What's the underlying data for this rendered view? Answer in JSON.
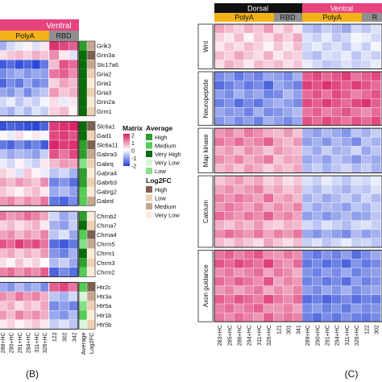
{
  "panel_b": {
    "panel_label": "(B)",
    "header_ventral": "Ventral",
    "header_polya": "PolyA",
    "header_rbd": "RBD",
    "sample_labels": [
      "288+HC",
      "290+HC",
      "291+HC",
      "294+HC",
      "311+HC",
      "326+HC",
      "122",
      "302",
      "342"
    ],
    "extra_column_labels": [
      "Average",
      "Log2FC"
    ],
    "gene_groups": [
      {
        "genes": [
          "Grik3",
          "Grin3a",
          "Slc17a6",
          "Gria2",
          "Gria1",
          "Gria3",
          "Grin2a",
          "Grm1"
        ]
      },
      {
        "genes": [
          "Slc6a1",
          "Gad1",
          "Slc6a11",
          "Gabra3",
          "Gabrq",
          "Gabra4",
          "Gabrb3",
          "Gabrg2",
          "Gabrd"
        ]
      },
      {
        "genes": [
          "Chrnb2",
          "Chrna7",
          "Chrna4",
          "Chrm5",
          "Chrm1",
          "Chrm3",
          "Chrm2"
        ]
      },
      {
        "genes": [
          "Htr2c",
          "Htr3a",
          "Htr5a",
          "Htr1b",
          "Htr5b"
        ]
      }
    ]
  },
  "panel_c": {
    "panel_label": "(C)",
    "header_dorsal": "Dorsal",
    "header_ventral": "Ventral",
    "header_polya_1": "PolyA",
    "header_rbd_1": "RBD",
    "header_polya_2": "PolyA",
    "header_rbd_2": "R",
    "sample_labels": [
      "283+HC",
      "285+HC",
      "286+HC",
      "294+HC",
      "311+HC",
      "326+HC",
      "121",
      "301",
      "341",
      "289+HC",
      "290+HC",
      "291+HC",
      "294+HC",
      "311+HC",
      "326+HC",
      "122",
      "302"
    ],
    "row_groups": [
      {
        "name": "Wnt",
        "rows": 5
      },
      {
        "name": "Neuropeptide",
        "rows": 6
      },
      {
        "name": "Map kinase",
        "rows": 5
      },
      {
        "name": "Calcium",
        "rows": 8
      },
      {
        "name": "Axon guidance",
        "rows": 8
      }
    ]
  },
  "legend": {
    "matrix_title": "Matrix",
    "matrix_ticks": [
      "2",
      "1",
      "0",
      "-1",
      "-2"
    ],
    "average_title": "Average",
    "average_items": [
      "High",
      "Medium",
      "Very High",
      "Very Low",
      "Low"
    ],
    "log2fc_title": "Log2FC",
    "log2fc_items": [
      "High",
      "Low",
      "Medium",
      "Very Low"
    ]
  },
  "colors": {
    "ventral": "#e8437f",
    "dorsal": "#111111",
    "polya": "#f2b21a",
    "rbd": "#8f8f8f",
    "high": "#d81b60",
    "mid": "#ffffff",
    "low": "#1f3ed6",
    "avg_high": "#2e9e2e",
    "avg_medium": "#55cc55",
    "avg_very_high": "#0a6b0a",
    "avg_very_low": "#d9f5d9",
    "avg_low": "#88e088",
    "fc_high": "#7d6253",
    "fc_low": "#efd0b2",
    "fc_medium": "#c6a68e",
    "fc_very_low": "#fbecd9"
  },
  "chart_data": [
    {
      "type": "heatmap",
      "title": "",
      "columns": [
        "288+HC",
        "290+HC",
        "291+HC",
        "294+HC",
        "311+HC",
        "326+HC",
        "122",
        "302",
        "342"
      ],
      "rows": [
        "Grik3",
        "Grin3a",
        "Slc17a6",
        "Gria2",
        "Gria1",
        "Gria3",
        "Grin2a",
        "Grm1",
        "Slc6a1",
        "Gad1",
        "Slc6a11",
        "Gabra3",
        "Gabrq",
        "Gabra4",
        "Gabrb3",
        "Gabrg2",
        "Gabrd",
        "Chrnb2",
        "Chrna7",
        "Chrna4",
        "Chrm5",
        "Chrm1",
        "Chrm3",
        "Chrm2",
        "Htr2c",
        "Htr3a",
        "Htr5a",
        "Htr1b",
        "Htr5b"
      ],
      "color_range": [
        -2,
        2
      ],
      "values": [
        [
          -0.8,
          -0.4,
          -0.2,
          0.1,
          -0.3,
          0.2,
          1.8,
          1.6,
          1.4
        ],
        [
          0.3,
          0.5,
          0.6,
          0.4,
          0.7,
          0.5,
          1.0,
          0.2,
          -0.3
        ],
        [
          -1.7,
          -1.5,
          -1.8,
          -1.6,
          -1.9,
          -1.4,
          0.6,
          1.5,
          1.3
        ],
        [
          -1.2,
          -1.0,
          -0.8,
          -1.1,
          -0.9,
          -1.0,
          1.2,
          1.4,
          1.0
        ],
        [
          -1.6,
          -1.2,
          -1.4,
          -0.9,
          -1.3,
          -1.1,
          0.4,
          0.8,
          0.6
        ],
        [
          -0.9,
          -1.1,
          -0.7,
          -1.2,
          -0.8,
          -0.6,
          0.9,
          0.5,
          0.7
        ],
        [
          -0.4,
          -0.2,
          -0.6,
          -0.3,
          -0.5,
          -0.1,
          0.3,
          -0.2,
          0.2
        ],
        [
          -0.6,
          -0.8,
          -0.4,
          -0.7,
          -0.3,
          -0.5,
          0.4,
          0.6,
          0.1
        ],
        [
          -1.8,
          -1.6,
          -1.7,
          -1.8,
          -1.9,
          -1.6,
          1.7,
          1.8,
          1.9
        ],
        [
          0.1,
          -0.2,
          0.3,
          0.0,
          0.2,
          -0.1,
          1.6,
          1.7,
          1.5
        ],
        [
          -1.4,
          -1.6,
          -1.2,
          -1.5,
          -1.3,
          -1.7,
          1.9,
          1.7,
          1.8
        ],
        [
          -0.6,
          -0.9,
          -0.7,
          -0.8,
          -1.0,
          -0.5,
          1.5,
          1.2,
          1.6
        ],
        [
          -0.2,
          -0.4,
          0.1,
          -0.3,
          -0.5,
          0.2,
          0.6,
          0.9,
          0.8
        ],
        [
          0.4,
          0.2,
          -0.3,
          0.5,
          0.1,
          -0.2,
          -0.6,
          -0.4,
          -0.8
        ],
        [
          0.8,
          0.6,
          0.9,
          0.7,
          0.5,
          1.0,
          -1.3,
          -1.1,
          -1.5
        ],
        [
          0.5,
          0.3,
          0.1,
          0.4,
          0.6,
          0.2,
          -0.9,
          -0.7,
          -1.0
        ],
        [
          0.9,
          1.1,
          0.7,
          1.0,
          0.8,
          1.2,
          -1.4,
          -1.6,
          -1.2
        ],
        [
          1.2,
          0.9,
          1.0,
          1.3,
          1.1,
          0.8,
          -0.4,
          -0.9,
          -0.6
        ],
        [
          0.4,
          0.6,
          0.3,
          0.5,
          0.7,
          0.2,
          -0.8,
          -1.0,
          -0.5
        ],
        [
          0.8,
          1.0,
          0.6,
          0.9,
          0.7,
          1.1,
          -0.6,
          -0.3,
          -0.9
        ],
        [
          1.5,
          1.3,
          1.7,
          1.4,
          1.6,
          1.2,
          -1.5,
          -1.7,
          -1.4
        ],
        [
          0.6,
          0.8,
          0.4,
          0.7,
          0.5,
          0.9,
          -1.1,
          -1.3,
          -0.8
        ],
        [
          0.3,
          0.1,
          0.5,
          0.2,
          0.4,
          0.0,
          -0.7,
          -0.5,
          -0.9
        ],
        [
          1.1,
          1.3,
          0.9,
          1.2,
          1.0,
          1.4,
          -1.6,
          -1.2,
          -1.5
        ],
        [
          -0.9,
          -1.1,
          -0.7,
          -1.0,
          -0.8,
          -1.2,
          1.4,
          1.6,
          1.2
        ],
        [
          1.0,
          0.8,
          1.2,
          0.9,
          1.1,
          0.7,
          -0.6,
          -0.8,
          -0.4
        ],
        [
          0.5,
          0.7,
          0.3,
          0.6,
          0.4,
          0.8,
          -1.2,
          -1.0,
          -1.3
        ],
        [
          0.9,
          0.6,
          1.1,
          0.8,
          1.0,
          0.7,
          -0.9,
          -1.1,
          -0.7
        ],
        [
          0.2,
          0.4,
          0.1,
          0.3,
          0.5,
          0.2,
          -0.5,
          -0.3,
          -0.6
        ]
      ],
      "average": [
        "High",
        "Very High",
        "Very High",
        "Very High",
        "Very High",
        "Very High",
        "Very High",
        "Very High",
        "Very High",
        "Very High",
        "High",
        "High",
        "Low",
        "High",
        "High",
        "Medium",
        "Medium",
        "High",
        "Very High",
        "Medium",
        "Low",
        "Very High",
        "High",
        "Medium",
        "Medium",
        "Very Low",
        "Low",
        "Medium",
        "Very Low"
      ],
      "log2fc": [
        "Medium",
        "High",
        "Medium",
        "Low",
        "Very Low",
        "Low",
        "Very Low",
        "Low",
        "High",
        "Low",
        "High",
        "Medium",
        "Low",
        "Very Low",
        "Low",
        "Very Low",
        "Medium",
        "Very Low",
        "Low",
        "High",
        "Medium",
        "Very Low",
        "Low",
        "Very Low",
        "High",
        "Medium",
        "Low",
        "Very Low",
        "Low"
      ]
    },
    {
      "type": "heatmap",
      "title": "",
      "columns": [
        "283+HC",
        "285+HC",
        "286+HC",
        "294+HC",
        "311+HC",
        "326+HC",
        "121",
        "301",
        "341",
        "289+HC",
        "290+HC",
        "291+HC",
        "294+HC",
        "311+HC",
        "326+HC",
        "122",
        "302"
      ],
      "row_groups": [
        "Wnt",
        "Neuropeptide",
        "Map kinase",
        "Calcium",
        "Axon guidance"
      ],
      "color_range": [
        -2,
        2
      ],
      "values": [
        [
          0.8,
          0.6,
          0.4,
          0.7,
          0.5,
          0.9,
          0.3,
          0.6,
          0.2,
          -0.6,
          -0.8,
          -0.5,
          -0.7,
          -0.9,
          -0.4,
          -0.6,
          -0.3
        ],
        [
          0.4,
          0.2,
          0.6,
          0.1,
          0.5,
          0.3,
          0.7,
          0.4,
          0.8,
          -0.3,
          -0.5,
          -0.2,
          -0.6,
          -0.4,
          -0.1,
          -0.2,
          -0.4
        ],
        [
          0.2,
          0.5,
          0.3,
          0.6,
          0.4,
          0.1,
          0.5,
          0.2,
          0.6,
          -0.4,
          -0.2,
          -0.5,
          -0.3,
          -0.6,
          -0.2,
          -0.5,
          -0.1
        ],
        [
          0.6,
          0.4,
          0.8,
          0.5,
          0.3,
          0.7,
          0.2,
          0.5,
          0.4,
          -0.5,
          -0.7,
          -0.3,
          -0.4,
          -0.2,
          -0.6,
          -0.3,
          -0.5
        ],
        [
          0.3,
          0.7,
          0.5,
          0.2,
          0.6,
          0.4,
          0.6,
          0.3,
          0.5,
          -0.2,
          -0.4,
          -0.6,
          -0.5,
          -0.3,
          -0.5,
          -0.4,
          -0.2
        ],
        [
          -1.2,
          -1.0,
          -1.4,
          -1.1,
          -1.3,
          -0.9,
          -1.0,
          -1.2,
          -0.8,
          1.4,
          1.6,
          1.3,
          1.5,
          1.7,
          1.2,
          1.4,
          1.6
        ],
        [
          -1.5,
          -1.3,
          -1.1,
          -1.4,
          -1.2,
          -1.6,
          -0.9,
          -1.1,
          -1.3,
          1.7,
          1.5,
          1.8,
          1.6,
          1.4,
          1.7,
          1.5,
          1.3
        ],
        [
          -1.0,
          -1.2,
          -0.8,
          -1.1,
          -0.9,
          -1.3,
          -1.2,
          -0.7,
          -1.0,
          1.3,
          1.5,
          1.2,
          1.6,
          1.4,
          1.1,
          1.3,
          1.5
        ],
        [
          -1.3,
          -1.1,
          -1.5,
          -1.2,
          -1.4,
          -1.0,
          -0.8,
          -1.0,
          -1.2,
          1.6,
          1.4,
          1.7,
          1.5,
          1.3,
          1.6,
          1.8,
          1.4
        ],
        [
          -0.9,
          -1.1,
          -1.0,
          -1.3,
          -0.8,
          -1.2,
          -1.1,
          -0.9,
          -0.7,
          1.2,
          1.4,
          1.1,
          1.3,
          1.5,
          1.2,
          1.0,
          1.3
        ],
        [
          -1.1,
          -0.9,
          -1.2,
          -1.0,
          -1.3,
          -0.8,
          -1.0,
          -1.2,
          -0.9,
          1.5,
          1.3,
          1.6,
          1.4,
          1.2,
          1.5,
          1.3,
          1.6
        ],
        [
          0.9,
          1.1,
          0.8,
          1.2,
          1.0,
          0.7,
          0.6,
          0.9,
          0.5,
          -0.8,
          -1.0,
          -0.7,
          -0.9,
          -1.1,
          -0.6,
          -0.8,
          -0.5
        ],
        [
          1.2,
          1.0,
          1.3,
          0.9,
          1.1,
          1.4,
          0.8,
          0.6,
          0.9,
          -1.0,
          -0.8,
          -1.1,
          -0.7,
          -0.9,
          -1.2,
          -0.6,
          -0.8
        ],
        [
          0.7,
          0.9,
          0.6,
          1.0,
          0.8,
          0.5,
          0.9,
          0.7,
          0.6,
          -0.6,
          -0.9,
          -0.5,
          -0.8,
          -0.7,
          -0.4,
          -0.9,
          -0.6
        ],
        [
          1.0,
          0.8,
          1.1,
          0.7,
          0.9,
          1.2,
          0.5,
          0.8,
          0.7,
          -0.9,
          -0.7,
          -1.0,
          -0.6,
          -0.8,
          -1.1,
          -0.7,
          -0.9
        ],
        [
          0.6,
          0.8,
          0.5,
          0.9,
          0.7,
          0.4,
          0.7,
          0.5,
          0.8,
          -0.7,
          -0.5,
          -0.8,
          -0.6,
          -0.4,
          -0.7,
          -0.5,
          -0.8
        ],
        [
          0.5,
          0.7,
          0.9,
          0.6,
          0.8,
          0.4,
          0.6,
          0.3,
          0.5,
          -0.3,
          -0.5,
          -0.2,
          -0.4,
          -0.6,
          -0.3,
          -0.4,
          -0.2
        ],
        [
          0.8,
          1.0,
          0.7,
          0.9,
          1.1,
          0.6,
          0.8,
          0.5,
          0.7,
          -0.5,
          -0.7,
          -0.4,
          -0.6,
          -0.8,
          -0.5,
          -0.6,
          -0.3
        ],
        [
          1.1,
          0.9,
          1.2,
          1.0,
          0.8,
          1.3,
          0.7,
          0.9,
          0.6,
          -0.8,
          -0.6,
          -0.9,
          -0.7,
          -0.5,
          -0.8,
          -0.4,
          -0.7
        ],
        [
          0.9,
          1.2,
          1.0,
          0.8,
          1.1,
          0.7,
          1.0,
          0.8,
          1.1,
          -0.6,
          -0.9,
          -0.7,
          -0.8,
          -1.0,
          -0.6,
          -0.8,
          -0.5
        ],
        [
          1.3,
          1.1,
          0.9,
          1.2,
          1.0,
          1.4,
          0.9,
          1.1,
          0.8,
          -1.0,
          -0.8,
          -1.1,
          -0.9,
          -0.7,
          -1.0,
          -0.9,
          -0.6
        ],
        [
          0.7,
          0.5,
          0.8,
          0.6,
          0.9,
          0.5,
          0.4,
          0.7,
          0.6,
          -0.4,
          -0.6,
          -0.3,
          -0.5,
          -0.7,
          -0.4,
          -0.3,
          -0.5
        ],
        [
          1.0,
          1.3,
          1.1,
          0.9,
          1.2,
          0.8,
          1.1,
          0.9,
          1.2,
          -0.9,
          -1.1,
          -0.8,
          -1.0,
          -1.2,
          -0.7,
          -1.0,
          -0.8
        ],
        [
          0.6,
          0.4,
          0.7,
          0.5,
          0.3,
          0.8,
          0.5,
          0.3,
          0.6,
          -0.5,
          -0.3,
          -0.6,
          -0.4,
          -0.2,
          -0.5,
          -0.4,
          -0.6
        ],
        [
          1.2,
          1.4,
          1.1,
          1.3,
          1.5,
          1.0,
          0.9,
          1.2,
          1.0,
          -1.2,
          -1.4,
          -1.1,
          -1.3,
          -1.0,
          -1.5,
          -1.2,
          -0.9
        ],
        [
          1.5,
          1.3,
          1.6,
          1.4,
          1.2,
          1.7,
          1.1,
          0.9,
          1.3,
          -1.4,
          -1.2,
          -1.5,
          -1.3,
          -1.6,
          -1.1,
          -1.4,
          -1.2
        ],
        [
          1.0,
          1.2,
          0.9,
          1.1,
          1.3,
          0.8,
          1.2,
          1.0,
          0.7,
          -1.1,
          -1.3,
          -1.0,
          -1.2,
          -0.9,
          -1.3,
          -1.1,
          -1.0
        ],
        [
          1.3,
          1.1,
          1.4,
          1.2,
          1.0,
          1.5,
          0.8,
          1.1,
          0.9,
          -1.3,
          -1.1,
          -1.4,
          -1.2,
          -1.5,
          -1.0,
          -1.3,
          -1.1
        ],
        [
          0.9,
          1.1,
          0.8,
          1.0,
          1.2,
          0.7,
          1.0,
          0.8,
          1.1,
          -1.0,
          -1.2,
          -0.9,
          -1.1,
          -0.8,
          -1.2,
          -1.0,
          -0.9
        ],
        [
          1.4,
          1.2,
          1.5,
          1.3,
          1.1,
          1.6,
          1.2,
          1.0,
          1.3,
          -1.5,
          -1.3,
          -1.6,
          -1.4,
          -1.2,
          -1.5,
          -1.3,
          -1.4
        ],
        [
          1.1,
          1.3,
          1.0,
          1.2,
          1.4,
          0.9,
          0.9,
          1.1,
          0.8,
          -1.2,
          -1.0,
          -1.3,
          -1.1,
          -1.4,
          -1.0,
          -1.2,
          -1.1
        ],
        [
          1.2,
          1.0,
          1.3,
          1.1,
          0.9,
          1.4,
          1.0,
          1.2,
          1.1,
          -1.3,
          -1.5,
          -1.2,
          -1.4,
          -1.1,
          -1.3,
          -1.4,
          -1.2
        ]
      ]
    }
  ]
}
